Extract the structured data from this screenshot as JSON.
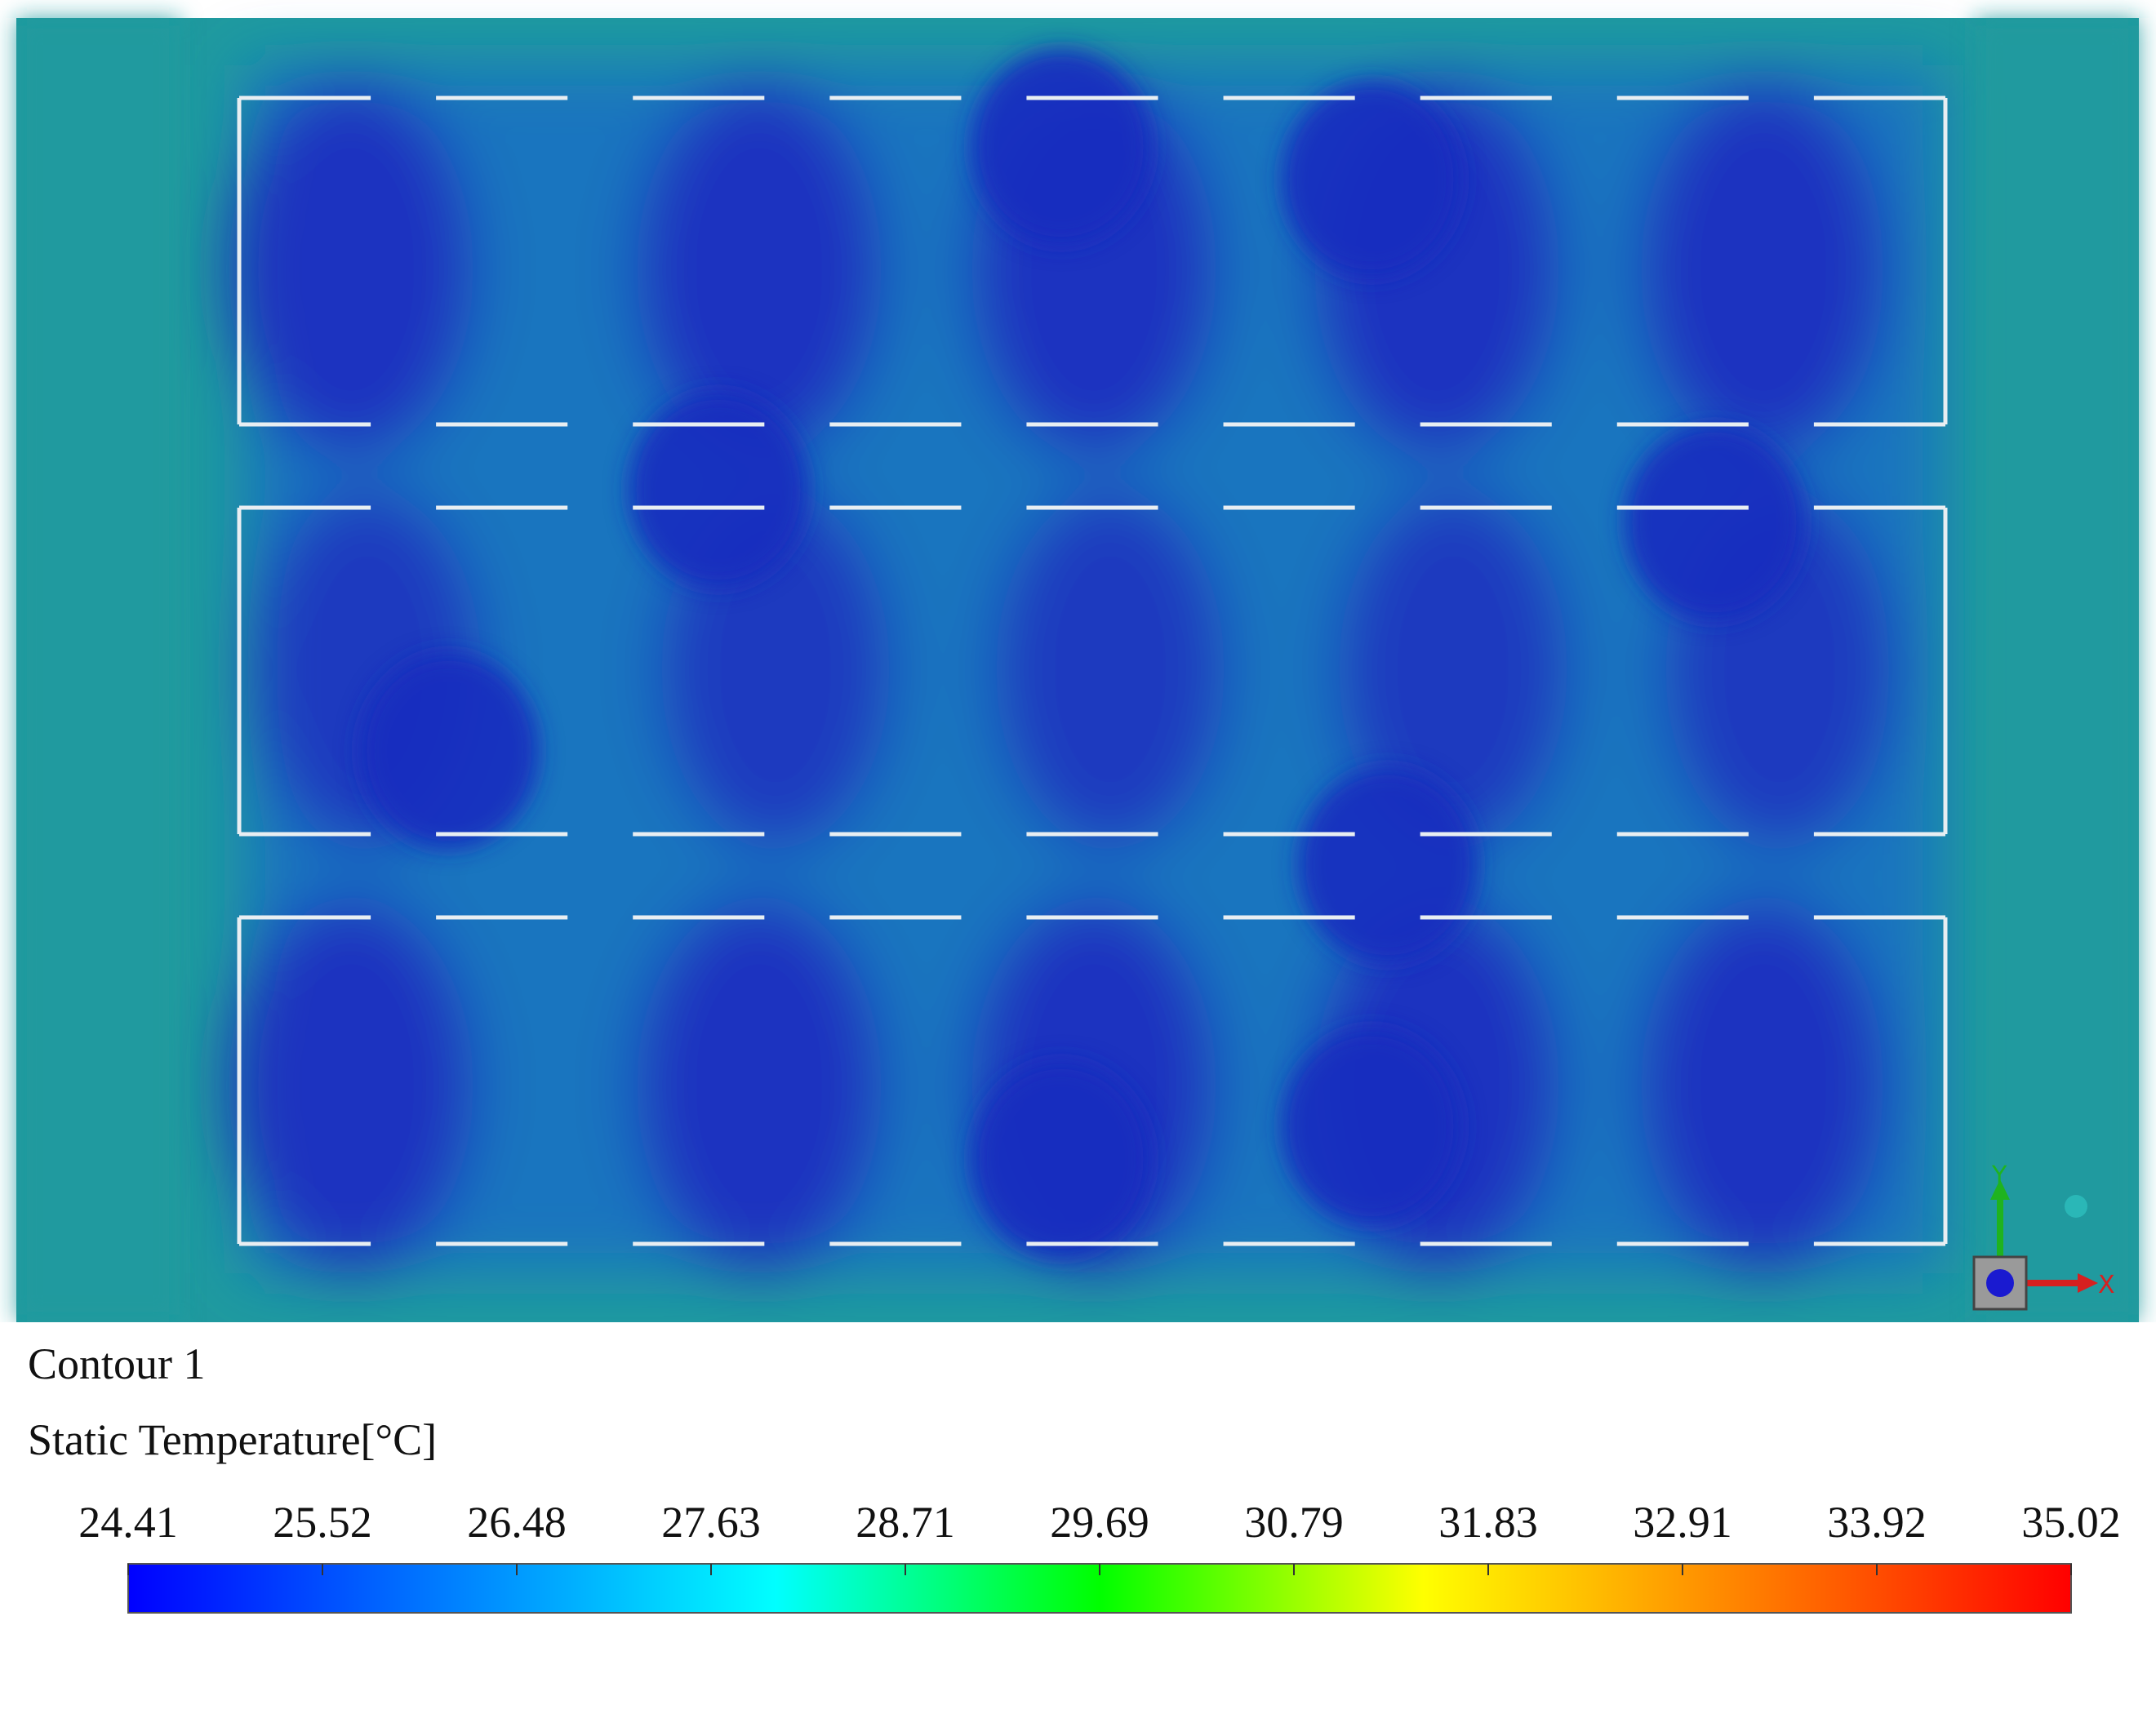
{
  "legend": {
    "title": "Contour 1",
    "variable": "Static Temperature[°C]",
    "ticks": [
      "24.41",
      "25.52",
      "26.48",
      "27.63",
      "28.71",
      "29.69",
      "30.79",
      "31.83",
      "32.91",
      "33.92",
      "35.02"
    ],
    "range": [
      24.41,
      35.02
    ],
    "colormap": [
      "#0000ff",
      "#0080ff",
      "#00ffff",
      "#00ff00",
      "#ffff00",
      "#ff8000",
      "#ff0000"
    ]
  },
  "field": {
    "background_color": "#1f9a9f",
    "cold_color": "#1a2fbf",
    "mid_color": "#1b6fc4",
    "outline_color": "#e8eef2"
  },
  "triad": {
    "x_label": "X",
    "y_label": "Y",
    "x_color": "#d62020",
    "y_color": "#1fb31f"
  }
}
